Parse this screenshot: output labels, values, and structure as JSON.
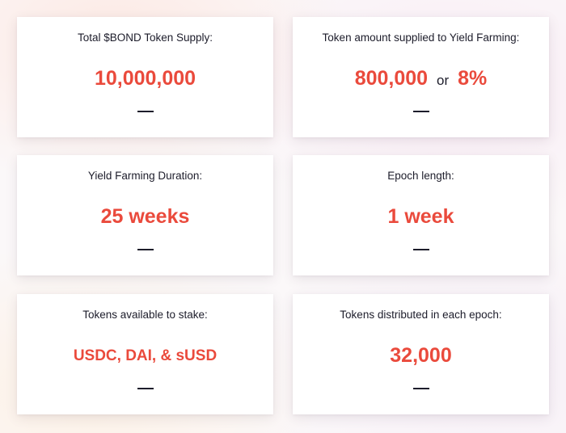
{
  "cards": [
    {
      "label": "Total $BOND Token Supply:",
      "value": "10,000,000"
    },
    {
      "label": "Token amount supplied to Yield Farming:",
      "value_main": "800,000",
      "value_joiner": "or",
      "value_alt": "8%"
    },
    {
      "label": "Yield Farming Duration:",
      "value": "25 weeks"
    },
    {
      "label": "Epoch length:",
      "value": "1 week"
    },
    {
      "label": "Tokens available to stake:",
      "value": "USDC, DAI, & sUSD"
    },
    {
      "label": "Tokens distributed in each epoch:",
      "value": "32,000"
    }
  ],
  "colors": {
    "accent": "#ea4a3c",
    "text": "#1d1d2b",
    "card_bg": "#ffffff"
  }
}
